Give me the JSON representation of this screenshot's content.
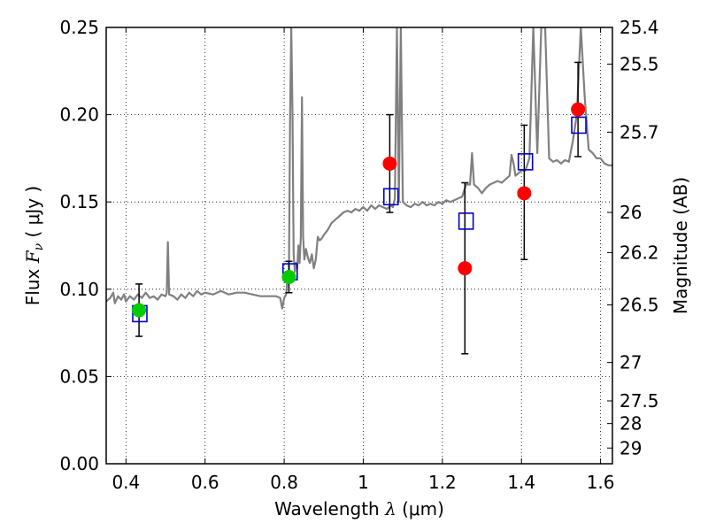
{
  "chart_data": {
    "type": "scatter",
    "xlabel": {
      "prefix": "Wavelength  ",
      "symbol": "λ",
      "suffix": " (μm)"
    },
    "ylabel": {
      "prefix": "Flux  ",
      "symbol": "F",
      "sub": "ν",
      "suffix": "  ( μJy )"
    },
    "y2label": "Magnitude (AB)",
    "xlim": [
      0.35,
      1.63
    ],
    "ylim": [
      0.0,
      0.25
    ],
    "grid": true,
    "colors": {
      "spectrum": "#808080",
      "model": "#0000cc",
      "green": "#00cc00",
      "red": "#ff0000",
      "error": "#000000"
    },
    "x_ticks": [
      {
        "value": 0.4,
        "label": "0.4"
      },
      {
        "value": 0.6,
        "label": "0.6"
      },
      {
        "value": 0.8,
        "label": "0.8"
      },
      {
        "value": 1.0,
        "label": "1"
      },
      {
        "value": 1.2,
        "label": "1.2"
      },
      {
        "value": 1.4,
        "label": "1.4"
      },
      {
        "value": 1.6,
        "label": "1.6"
      }
    ],
    "y_ticks": [
      {
        "value": 0.0,
        "label": "0.00"
      },
      {
        "value": 0.05,
        "label": "0.05"
      },
      {
        "value": 0.1,
        "label": "0.10"
      },
      {
        "value": 0.15,
        "label": "0.15"
      },
      {
        "value": 0.2,
        "label": "0.20"
      },
      {
        "value": 0.25,
        "label": "0.25"
      }
    ],
    "y2_ticks": [
      {
        "flux": 0.25,
        "label": "25.4"
      },
      {
        "flux": 0.229,
        "label": "25.5"
      },
      {
        "flux": 0.19,
        "label": "25.7"
      },
      {
        "flux": 0.144,
        "label": "26"
      },
      {
        "flux": 0.121,
        "label": "26.2"
      },
      {
        "flux": 0.091,
        "label": "26.5"
      },
      {
        "flux": 0.058,
        "label": "27"
      },
      {
        "flux": 0.036,
        "label": "27.5"
      },
      {
        "flux": 0.023,
        "label": "28"
      },
      {
        "flux": 0.009,
        "label": "29"
      }
    ],
    "spectrum": [
      [
        0.35,
        0.093
      ],
      [
        0.36,
        0.095
      ],
      [
        0.368,
        0.098
      ],
      [
        0.372,
        0.092
      ],
      [
        0.38,
        0.096
      ],
      [
        0.388,
        0.094
      ],
      [
        0.395,
        0.097
      ],
      [
        0.4,
        0.093
      ],
      [
        0.41,
        0.096
      ],
      [
        0.42,
        0.094
      ],
      [
        0.43,
        0.097
      ],
      [
        0.44,
        0.095
      ],
      [
        0.45,
        0.098
      ],
      [
        0.46,
        0.095
      ],
      [
        0.47,
        0.096
      ],
      [
        0.48,
        0.094
      ],
      [
        0.49,
        0.097
      ],
      [
        0.5,
        0.096
      ],
      [
        0.503,
        0.098
      ],
      [
        0.506,
        0.127
      ],
      [
        0.509,
        0.097
      ],
      [
        0.52,
        0.096
      ],
      [
        0.53,
        0.094
      ],
      [
        0.54,
        0.097
      ],
      [
        0.55,
        0.095
      ],
      [
        0.56,
        0.098
      ],
      [
        0.57,
        0.096
      ],
      [
        0.58,
        0.099
      ],
      [
        0.59,
        0.097
      ],
      [
        0.6,
        0.098
      ],
      [
        0.62,
        0.097
      ],
      [
        0.64,
        0.099
      ],
      [
        0.66,
        0.097
      ],
      [
        0.68,
        0.098
      ],
      [
        0.7,
        0.098
      ],
      [
        0.72,
        0.097
      ],
      [
        0.74,
        0.096
      ],
      [
        0.76,
        0.096
      ],
      [
        0.78,
        0.096
      ],
      [
        0.79,
        0.095
      ],
      [
        0.795,
        0.089
      ],
      [
        0.8,
        0.095
      ],
      [
        0.805,
        0.097
      ],
      [
        0.808,
        0.105
      ],
      [
        0.812,
        0.11
      ],
      [
        0.815,
        0.2
      ],
      [
        0.818,
        0.25
      ],
      [
        0.821,
        0.2
      ],
      [
        0.824,
        0.12
      ],
      [
        0.827,
        0.11
      ],
      [
        0.83,
        0.115
      ],
      [
        0.833,
        0.112
      ],
      [
        0.836,
        0.125
      ],
      [
        0.839,
        0.115
      ],
      [
        0.842,
        0.13
      ],
      [
        0.845,
        0.21
      ],
      [
        0.848,
        0.13
      ],
      [
        0.851,
        0.117
      ],
      [
        0.855,
        0.123
      ],
      [
        0.86,
        0.118
      ],
      [
        0.865,
        0.115
      ],
      [
        0.87,
        0.12
      ],
      [
        0.875,
        0.112
      ],
      [
        0.88,
        0.117
      ],
      [
        0.885,
        0.13
      ],
      [
        0.89,
        0.128
      ],
      [
        0.895,
        0.129
      ],
      [
        0.9,
        0.131
      ],
      [
        0.91,
        0.134
      ],
      [
        0.92,
        0.138
      ],
      [
        0.93,
        0.14
      ],
      [
        0.94,
        0.142
      ],
      [
        0.95,
        0.144
      ],
      [
        0.96,
        0.145
      ],
      [
        0.97,
        0.144
      ],
      [
        0.98,
        0.146
      ],
      [
        0.99,
        0.145
      ],
      [
        1.0,
        0.147
      ],
      [
        1.01,
        0.145
      ],
      [
        1.02,
        0.148
      ],
      [
        1.03,
        0.146
      ],
      [
        1.04,
        0.148
      ],
      [
        1.05,
        0.147
      ],
      [
        1.06,
        0.146
      ],
      [
        1.07,
        0.148
      ],
      [
        1.075,
        0.147
      ],
      [
        1.08,
        0.152
      ],
      [
        1.085,
        0.25
      ],
      [
        1.09,
        0.15
      ],
      [
        1.095,
        0.25
      ],
      [
        1.1,
        0.15
      ],
      [
        1.11,
        0.148
      ],
      [
        1.12,
        0.147
      ],
      [
        1.13,
        0.149
      ],
      [
        1.14,
        0.148
      ],
      [
        1.15,
        0.15
      ],
      [
        1.16,
        0.148
      ],
      [
        1.17,
        0.149
      ],
      [
        1.18,
        0.148
      ],
      [
        1.19,
        0.15
      ],
      [
        1.2,
        0.149
      ],
      [
        1.21,
        0.151
      ],
      [
        1.22,
        0.15
      ],
      [
        1.23,
        0.151
      ],
      [
        1.24,
        0.152
      ],
      [
        1.25,
        0.153
      ],
      [
        1.26,
        0.16
      ],
      [
        1.27,
        0.16
      ],
      [
        1.275,
        0.178
      ],
      [
        1.28,
        0.16
      ],
      [
        1.29,
        0.158
      ],
      [
        1.3,
        0.155
      ],
      [
        1.31,
        0.158
      ],
      [
        1.32,
        0.16
      ],
      [
        1.33,
        0.161
      ],
      [
        1.34,
        0.162
      ],
      [
        1.35,
        0.161
      ],
      [
        1.36,
        0.163
      ],
      [
        1.37,
        0.165
      ],
      [
        1.375,
        0.177
      ],
      [
        1.38,
        0.172
      ],
      [
        1.385,
        0.165
      ],
      [
        1.39,
        0.166
      ],
      [
        1.4,
        0.168
      ],
      [
        1.41,
        0.168
      ],
      [
        1.42,
        0.175
      ],
      [
        1.43,
        0.25
      ],
      [
        1.44,
        0.178
      ],
      [
        1.45,
        0.25
      ],
      [
        1.46,
        0.25
      ],
      [
        1.47,
        0.175
      ],
      [
        1.48,
        0.173
      ],
      [
        1.49,
        0.174
      ],
      [
        1.5,
        0.172
      ],
      [
        1.51,
        0.174
      ],
      [
        1.52,
        0.173
      ],
      [
        1.53,
        0.185
      ],
      [
        1.54,
        0.2
      ],
      [
        1.55,
        0.25
      ],
      [
        1.56,
        0.21
      ],
      [
        1.57,
        0.18
      ],
      [
        1.58,
        0.178
      ],
      [
        1.59,
        0.175
      ],
      [
        1.6,
        0.175
      ],
      [
        1.61,
        0.172
      ],
      [
        1.62,
        0.171
      ],
      [
        1.63,
        0.171
      ]
    ],
    "model_points": [
      {
        "x": 0.435,
        "y": 0.086
      },
      {
        "x": 0.815,
        "y": 0.11
      },
      {
        "x": 1.07,
        "y": 0.153
      },
      {
        "x": 1.26,
        "y": 0.139
      },
      {
        "x": 1.41,
        "y": 0.173
      },
      {
        "x": 1.545,
        "y": 0.194
      }
    ],
    "green_points": [
      {
        "x": 0.433,
        "y": 0.088,
        "err_low": 0.015,
        "err_high": 0.015
      },
      {
        "x": 0.812,
        "y": 0.107,
        "err_low": 0.009,
        "err_high": 0.009
      }
    ],
    "red_points": [
      {
        "x": 1.067,
        "y": 0.172,
        "err_low": 0.028,
        "err_high": 0.028
      },
      {
        "x": 1.257,
        "y": 0.112,
        "err_low": 0.049,
        "err_high": 0.049
      },
      {
        "x": 1.407,
        "y": 0.155,
        "err_low": 0.038,
        "err_high": 0.039
      },
      {
        "x": 1.543,
        "y": 0.203,
        "err_low": 0.027,
        "err_high": 0.027
      }
    ]
  }
}
